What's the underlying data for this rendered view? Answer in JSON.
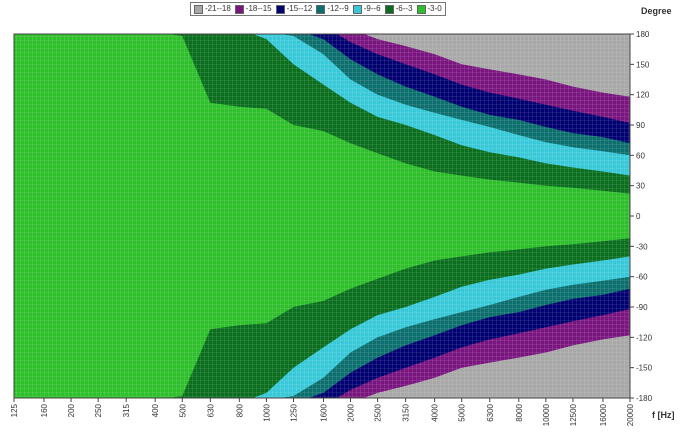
{
  "chart_data": {
    "type": "heatmap",
    "title": "",
    "xlabel": "f [Hz]",
    "ylabel": "Degree",
    "x_scale": "log",
    "x_ticks": [
      "125",
      "160",
      "200",
      "250",
      "315",
      "400",
      "500",
      "630",
      "800",
      "1000",
      "1250",
      "1600",
      "2000",
      "2500",
      "3150",
      "4000",
      "5000",
      "6300",
      "8000",
      "10000",
      "12500",
      "16000",
      "20000"
    ],
    "y_ticks": [
      180,
      150,
      120,
      90,
      60,
      30,
      0,
      -30,
      -60,
      -90,
      -120,
      -150,
      -180
    ],
    "ylim": [
      -180,
      180
    ],
    "xlim": [
      125,
      20000
    ],
    "grid": true,
    "legend_position": "top",
    "levels": [
      {
        "label": "-21--18",
        "color": "#a8a8a8",
        "min": -21,
        "max": -18
      },
      {
        "label": "-18--15",
        "color": "#7a1580",
        "min": -18,
        "max": -15
      },
      {
        "label": "-15--12",
        "color": "#000070",
        "min": -15,
        "max": -12
      },
      {
        "label": "-12--9",
        "color": "#0c6f6e",
        "min": -12,
        "max": -9
      },
      {
        "label": "-9--6",
        "color": "#38c8d8",
        "min": -9,
        "max": -6
      },
      {
        "label": "-6--3",
        "color": "#0a6e1e",
        "min": -6,
        "max": -3
      },
      {
        "label": "-3-0",
        "color": "#2fbe2c",
        "min": -3,
        "max": 0
      }
    ],
    "contours": {
      "description": "angle (deg) at which each level boundary is crossed, per frequency",
      "frequencies": [
        125,
        400,
        500,
        630,
        800,
        1000,
        1250,
        1600,
        2000,
        2500,
        3150,
        4000,
        5000,
        6300,
        8000,
        10000,
        12500,
        16000,
        20000
      ],
      "boundary_-3": [
        999,
        999,
        178,
        112,
        108,
        106,
        90,
        84,
        72,
        62,
        52,
        44,
        40,
        36,
        33,
        30,
        28,
        25,
        22
      ],
      "boundary_-6": [
        999,
        999,
        999,
        999,
        999,
        175,
        150,
        130,
        112,
        98,
        90,
        80,
        70,
        63,
        58,
        52,
        48,
        44,
        40
      ],
      "boundary_-9": [
        999,
        999,
        999,
        999,
        999,
        999,
        178,
        160,
        135,
        120,
        110,
        102,
        95,
        88,
        80,
        73,
        68,
        64,
        60
      ],
      "boundary_-12": [
        999,
        999,
        999,
        999,
        999,
        999,
        999,
        175,
        155,
        140,
        128,
        118,
        108,
        100,
        95,
        88,
        82,
        78,
        72
      ],
      "boundary_-15": [
        999,
        999,
        999,
        999,
        999,
        999,
        999,
        999,
        172,
        160,
        150,
        140,
        130,
        122,
        116,
        110,
        104,
        98,
        92
      ],
      "boundary_-18": [
        999,
        999,
        999,
        999,
        999,
        999,
        999,
        999,
        999,
        175,
        168,
        160,
        150,
        145,
        140,
        135,
        128,
        122,
        118
      ]
    }
  },
  "ui": {
    "units_label": "Degree",
    "x_units_label": "f [Hz]"
  }
}
